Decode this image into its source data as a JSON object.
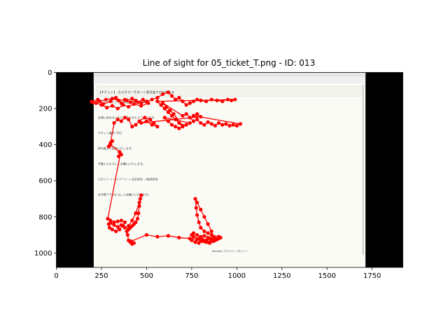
{
  "chart_data": {
    "type": "scatter",
    "title": "Line of sight for 05_ticket_T.png - ID: 013",
    "xlabel": "",
    "ylabel": "",
    "xlim": [
      0,
      1920
    ],
    "ylim": [
      1080,
      0
    ],
    "x_ticks": [
      0,
      250,
      500,
      750,
      1000,
      1250,
      1500,
      1750
    ],
    "y_ticks": [
      0,
      200,
      400,
      600,
      800,
      1000
    ],
    "grid": false,
    "legend": "none",
    "background_image": {
      "letterbox_color": "#000000",
      "content_x_range": [
        207,
        1713
      ],
      "content_y_range": [
        0,
        1080
      ],
      "email_subject": "【チケット】 カスタマーサポート受付完了のお知らせ",
      "mail_lines": [
        "※このメールアドレスは送信専用です。",
        "お問い合わせいただきありがとうございます。",
        "チケット番号: 013",
        "担当者より回答いたします。",
        "今後ともよろしくお願いいたします。",
        "ログイン → マイページ → 注文状況 → 配送状況",
        "お手数ですがよろしくお願いいたします。"
      ],
      "footer_text": "Zendesk プライバシーポリシー"
    },
    "series": [
      {
        "color": "#ff0000",
        "marker": "circle",
        "connected": true,
        "points": [
          [
            195,
            162
          ],
          [
            230,
            150
          ],
          [
            260,
            175
          ],
          [
            300,
            160
          ],
          [
            330,
            140
          ],
          [
            360,
            170
          ],
          [
            390,
            155
          ],
          [
            420,
            145
          ],
          [
            450,
            165
          ],
          [
            480,
            150
          ],
          [
            510,
            170
          ],
          [
            470,
            185
          ],
          [
            430,
            175
          ],
          [
            400,
            190
          ],
          [
            370,
            180
          ],
          [
            340,
            200
          ],
          [
            310,
            185
          ],
          [
            280,
            195
          ],
          [
            250,
            180
          ],
          [
            220,
            170
          ],
          [
            200,
            165
          ],
          [
            240,
            160
          ],
          [
            275,
            150
          ],
          [
            310,
            145
          ],
          [
            345,
            155
          ],
          [
            380,
            150
          ],
          [
            410,
            165
          ],
          [
            440,
            155
          ],
          [
            470,
            170
          ],
          [
            500,
            160
          ],
          [
            530,
            150
          ],
          [
            560,
            140
          ],
          [
            590,
            120
          ],
          [
            620,
            110
          ],
          [
            640,
            130
          ],
          [
            660,
            150
          ],
          [
            680,
            140
          ],
          [
            700,
            160
          ],
          [
            720,
            180
          ],
          [
            740,
            170
          ],
          [
            760,
            160
          ],
          [
            780,
            150
          ],
          [
            800,
            155
          ],
          [
            830,
            160
          ],
          [
            860,
            150
          ],
          [
            890,
            155
          ],
          [
            920,
            160
          ],
          [
            950,
            150
          ],
          [
            970,
            155
          ],
          [
            990,
            150
          ],
          [
            560,
            160
          ],
          [
            580,
            180
          ],
          [
            600,
            200
          ],
          [
            620,
            220
          ],
          [
            640,
            240
          ],
          [
            660,
            260
          ],
          [
            680,
            280
          ],
          [
            700,
            300
          ],
          [
            720,
            290
          ],
          [
            740,
            280
          ],
          [
            600,
            250
          ],
          [
            620,
            270
          ],
          [
            640,
            290
          ],
          [
            660,
            300
          ],
          [
            680,
            310
          ],
          [
            700,
            295
          ],
          [
            650,
            230
          ],
          [
            630,
            210
          ],
          [
            610,
            190
          ],
          [
            590,
            170
          ],
          [
            700,
            240
          ],
          [
            720,
            230
          ],
          [
            740,
            250
          ],
          [
            760,
            270
          ],
          [
            780,
            260
          ],
          [
            800,
            280
          ],
          [
            820,
            290
          ],
          [
            840,
            275
          ],
          [
            860,
            285
          ],
          [
            880,
            295
          ],
          [
            900,
            280
          ],
          [
            920,
            290
          ],
          [
            940,
            285
          ],
          [
            960,
            295
          ],
          [
            980,
            290
          ],
          [
            1000,
            295
          ],
          [
            1020,
            285
          ],
          [
            760,
            240
          ],
          [
            780,
            230
          ],
          [
            800,
            245
          ],
          [
            470,
            280
          ],
          [
            500,
            270
          ],
          [
            530,
            290
          ],
          [
            560,
            300
          ],
          [
            540,
            280
          ],
          [
            520,
            260
          ],
          [
            490,
            250
          ],
          [
            460,
            270
          ],
          [
            440,
            290
          ],
          [
            420,
            300
          ],
          [
            400,
            260
          ],
          [
            380,
            250
          ],
          [
            360,
            270
          ],
          [
            340,
            260
          ],
          [
            320,
            280
          ],
          [
            300,
            390
          ],
          [
            310,
            380
          ],
          [
            295,
            405
          ],
          [
            290,
            410
          ],
          [
            300,
            400
          ],
          [
            350,
            440
          ],
          [
            360,
            455
          ],
          [
            345,
            465
          ],
          [
            355,
            450
          ],
          [
            285,
            810
          ],
          [
            300,
            820
          ],
          [
            320,
            830
          ],
          [
            340,
            825
          ],
          [
            360,
            820
          ],
          [
            380,
            830
          ],
          [
            370,
            850
          ],
          [
            350,
            870
          ],
          [
            330,
            880
          ],
          [
            310,
            870
          ],
          [
            295,
            860
          ],
          [
            290,
            840
          ],
          [
            300,
            835
          ],
          [
            320,
            845
          ],
          [
            340,
            855
          ],
          [
            360,
            845
          ],
          [
            380,
            860
          ],
          [
            400,
            870
          ],
          [
            410,
            860
          ],
          [
            420,
            850
          ],
          [
            430,
            840
          ],
          [
            440,
            830
          ],
          [
            450,
            810
          ],
          [
            455,
            780
          ],
          [
            460,
            740
          ],
          [
            465,
            700
          ],
          [
            470,
            680
          ],
          [
            460,
            720
          ],
          [
            440,
            780
          ],
          [
            420,
            820
          ],
          [
            400,
            850
          ],
          [
            390,
            880
          ],
          [
            395,
            900
          ],
          [
            400,
            930
          ],
          [
            410,
            940
          ],
          [
            420,
            950
          ],
          [
            430,
            945
          ],
          [
            415,
            935
          ],
          [
            500,
            900
          ],
          [
            560,
            910
          ],
          [
            620,
            905
          ],
          [
            680,
            915
          ],
          [
            740,
            920
          ],
          [
            780,
            925
          ],
          [
            800,
            930
          ],
          [
            820,
            935
          ],
          [
            840,
            940
          ],
          [
            860,
            930
          ],
          [
            880,
            920
          ],
          [
            900,
            910
          ],
          [
            860,
            900
          ],
          [
            840,
            890
          ],
          [
            820,
            880
          ],
          [
            800,
            860
          ],
          [
            790,
            830
          ],
          [
            780,
            790
          ],
          [
            775,
            750
          ],
          [
            770,
            700
          ],
          [
            780,
            720
          ],
          [
            800,
            760
          ],
          [
            820,
            800
          ],
          [
            840,
            840
          ],
          [
            860,
            880
          ],
          [
            870,
            910
          ],
          [
            850,
            920
          ],
          [
            830,
            930
          ],
          [
            810,
            925
          ],
          [
            790,
            920
          ],
          [
            760,
            910
          ],
          [
            750,
            900
          ],
          [
            760,
            890
          ],
          [
            780,
            900
          ],
          [
            800,
            910
          ],
          [
            820,
            905
          ],
          [
            840,
            915
          ],
          [
            860,
            925
          ],
          [
            880,
            930
          ],
          [
            900,
            920
          ],
          [
            910,
            915
          ],
          [
            890,
            925
          ],
          [
            870,
            935
          ],
          [
            850,
            945
          ],
          [
            830,
            940
          ],
          [
            810,
            935
          ],
          [
            790,
            945
          ],
          [
            770,
            940
          ],
          [
            750,
            930
          ]
        ]
      }
    ]
  }
}
